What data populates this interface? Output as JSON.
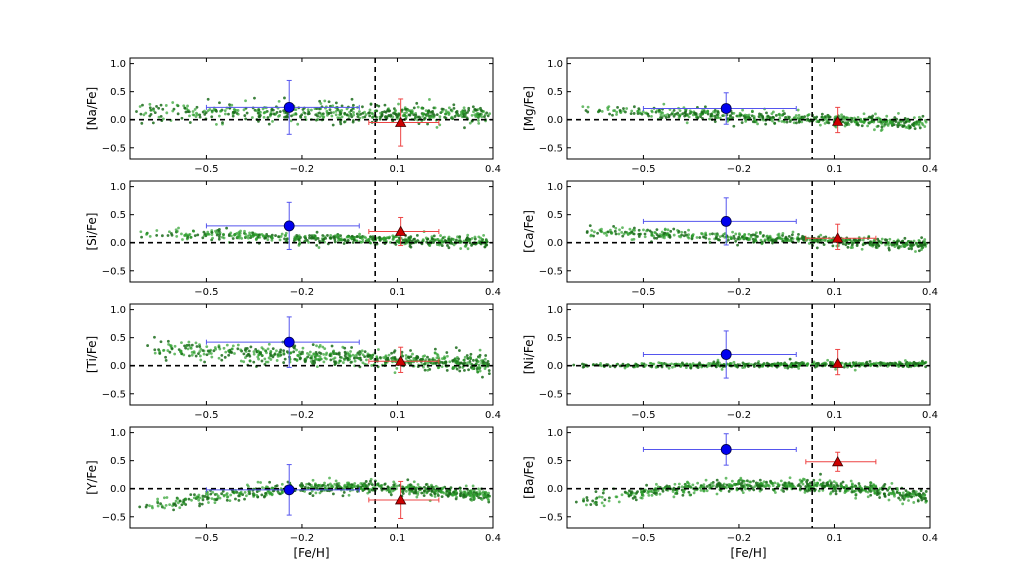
{
  "figure": {
    "type": "scatter-grid",
    "xlabel": "[Fe/H]",
    "colors": {
      "field": "#2ca02c",
      "fieldDark": "#1a6b1a",
      "blue": "#0000ee",
      "blueBar": "#5555ee",
      "red": "#cc0000",
      "redBar": "#ee4444",
      "axis": "#000000"
    }
  },
  "chart_data": [
    {
      "type": "scatter",
      "ylabel": "[Na/Fe]",
      "xlabel": "",
      "xlim": [
        -0.74,
        0.4
      ],
      "ylim": [
        -0.7,
        1.1
      ],
      "x_ticks": [
        -0.5,
        -0.2,
        0.1,
        0.4
      ],
      "x_tick_labels": [
        "−0.5",
        "−0.2",
        "0.1",
        "0.4"
      ],
      "y_ticks": [
        1.0,
        0.5,
        0.0,
        -0.5
      ],
      "y_tick_labels": [
        "1.0",
        "0.5",
        "0.0",
        "−0.5"
      ],
      "vline_x": 0.03,
      "hline_y": 0.0,
      "field": {
        "slope": -0.05,
        "intercept": 0.12,
        "scatter": 0.09,
        "n": 520,
        "x_range": [
          -0.72,
          0.39
        ]
      },
      "blue": {
        "x": -0.24,
        "y": 0.22,
        "xerr": [
          0.26,
          0.22
        ],
        "yerr": [
          0.48,
          0.48
        ]
      },
      "red": {
        "x": 0.11,
        "y": -0.05,
        "xerr": [
          0.1,
          0.12
        ],
        "yerr": [
          0.42,
          0.42
        ]
      }
    },
    {
      "type": "scatter",
      "ylabel": "[Mg/Fe]",
      "xlabel": "",
      "xlim": [
        -0.74,
        0.4
      ],
      "ylim": [
        -0.7,
        1.1
      ],
      "x_ticks": [
        -0.5,
        -0.2,
        0.1,
        0.4
      ],
      "x_tick_labels": [
        "−0.5",
        "−0.2",
        "0.1",
        "0.4"
      ],
      "y_ticks": [
        1.0,
        0.5,
        0.0,
        -0.5
      ],
      "y_tick_labels": [
        "1.0",
        "0.5",
        "0.0",
        "−0.5"
      ],
      "vline_x": 0.03,
      "hline_y": 0.0,
      "field": {
        "slope": -0.22,
        "intercept": 0.02,
        "scatter": 0.06,
        "n": 520,
        "x_range": [
          -0.72,
          0.39
        ]
      },
      "blue": {
        "x": -0.24,
        "y": 0.2,
        "xerr": [
          0.26,
          0.22
        ],
        "yerr": [
          0.28,
          0.28
        ]
      },
      "red": {
        "x": 0.11,
        "y": -0.03,
        "xerr": [
          0.0,
          0.0
        ],
        "yerr": [
          0.25,
          0.2
        ]
      }
    },
    {
      "type": "scatter",
      "ylabel": "[Si/Fe]",
      "xlabel": "",
      "xlim": [
        -0.74,
        0.4
      ],
      "ylim": [
        -0.7,
        1.1
      ],
      "x_ticks": [
        -0.5,
        -0.2,
        0.1,
        0.4
      ],
      "x_tick_labels": [
        "−0.5",
        "−0.2",
        "0.1",
        "0.4"
      ],
      "y_ticks": [
        1.0,
        0.5,
        0.0,
        -0.5
      ],
      "y_tick_labels": [
        "1.0",
        "0.5",
        "0.0",
        "−0.5"
      ],
      "vline_x": 0.03,
      "hline_y": 0.0,
      "field": {
        "slope": -0.14,
        "intercept": 0.06,
        "scatter": 0.05,
        "n": 520,
        "x_range": [
          -0.72,
          0.39
        ]
      },
      "blue": {
        "x": -0.24,
        "y": 0.3,
        "xerr": [
          0.26,
          0.22
        ],
        "yerr": [
          0.42,
          0.42
        ]
      },
      "red": {
        "x": 0.11,
        "y": 0.2,
        "xerr": [
          0.1,
          0.12
        ],
        "yerr": [
          0.25,
          0.25
        ]
      }
    },
    {
      "type": "scatter",
      "ylabel": "[Ca/Fe]",
      "xlabel": "",
      "xlim": [
        -0.74,
        0.4
      ],
      "ylim": [
        -0.7,
        1.1
      ],
      "x_ticks": [
        -0.5,
        -0.2,
        0.1,
        0.4
      ],
      "x_tick_labels": [
        "−0.5",
        "−0.2",
        "0.1",
        "0.4"
      ],
      "y_ticks": [
        1.0,
        0.5,
        0.0,
        -0.5
      ],
      "y_tick_labels": [
        "1.0",
        "0.5",
        "0.0",
        "−0.5"
      ],
      "vline_x": 0.03,
      "hline_y": 0.0,
      "field": {
        "slope": -0.22,
        "intercept": 0.05,
        "scatter": 0.05,
        "n": 520,
        "x_range": [
          -0.72,
          0.39
        ]
      },
      "blue": {
        "x": -0.24,
        "y": 0.38,
        "xerr": [
          0.26,
          0.22
        ],
        "yerr": [
          0.42,
          0.42
        ]
      },
      "red": {
        "x": 0.11,
        "y": 0.08,
        "xerr": [
          0.1,
          0.12
        ],
        "yerr": [
          0.25,
          0.2
        ]
      }
    },
    {
      "type": "scatter",
      "ylabel": "[Ti/Fe]",
      "xlabel": "",
      "xlim": [
        -0.74,
        0.4
      ],
      "ylim": [
        -0.7,
        1.1
      ],
      "x_ticks": [
        -0.5,
        -0.2,
        0.1,
        0.4
      ],
      "x_tick_labels": [
        "−0.5",
        "−0.2",
        "0.1",
        "0.4"
      ],
      "y_ticks": [
        1.0,
        0.5,
        0.0,
        -0.5
      ],
      "y_tick_labels": [
        "1.0",
        "0.5",
        "0.0",
        "−0.5"
      ],
      "vline_x": 0.03,
      "hline_y": 0.0,
      "field": {
        "slope": -0.28,
        "intercept": 0.13,
        "scatter": 0.09,
        "n": 620,
        "x_range": [
          -0.72,
          0.39
        ]
      },
      "blue": {
        "x": -0.24,
        "y": 0.42,
        "xerr": [
          0.26,
          0.22
        ],
        "yerr": [
          0.45,
          0.45
        ]
      },
      "red": {
        "x": 0.11,
        "y": 0.08,
        "xerr": [
          0.1,
          0.12
        ],
        "yerr": [
          0.25,
          0.2
        ]
      }
    },
    {
      "type": "scatter",
      "ylabel": "[Ni/Fe]",
      "xlabel": "",
      "xlim": [
        -0.74,
        0.4
      ],
      "ylim": [
        -0.7,
        1.1
      ],
      "x_ticks": [
        -0.5,
        -0.2,
        0.1,
        0.4
      ],
      "x_tick_labels": [
        "−0.5",
        "−0.2",
        "0.1",
        "0.4"
      ],
      "y_ticks": [
        1.0,
        0.5,
        0.0,
        -0.5
      ],
      "y_tick_labels": [
        "1.0",
        "0.5",
        "0.0",
        "−0.5"
      ],
      "vline_x": 0.03,
      "hline_y": 0.0,
      "field": {
        "slope": 0.03,
        "intercept": 0.02,
        "scatter": 0.025,
        "n": 520,
        "x_range": [
          -0.72,
          0.39
        ]
      },
      "blue": {
        "x": -0.24,
        "y": 0.2,
        "xerr": [
          0.26,
          0.22
        ],
        "yerr": [
          0.42,
          0.42
        ]
      },
      "red": {
        "x": 0.11,
        "y": 0.04,
        "xerr": [
          0.0,
          0.0
        ],
        "yerr": [
          0.25,
          0.2
        ]
      }
    },
    {
      "type": "scatter",
      "ylabel": "[Y/Fe]",
      "xlabel": "[Fe/H]",
      "xlim": [
        -0.74,
        0.4
      ],
      "ylim": [
        -0.7,
        1.1
      ],
      "x_ticks": [
        -0.5,
        -0.2,
        0.1,
        0.4
      ],
      "x_tick_labels": [
        "−0.5",
        "−0.2",
        "0.1",
        "0.4"
      ],
      "y_ticks": [
        1.0,
        0.5,
        0.0,
        -0.5
      ],
      "y_tick_labels": [
        "1.0",
        "0.5",
        "0.0",
        "−0.5"
      ],
      "vline_x": 0.03,
      "hline_y": 0.0,
      "field": {
        "arc": true,
        "peak_x": -0.05,
        "peak_y": 0.03,
        "curv": 0.9,
        "scatter": 0.06,
        "n": 640,
        "x_range": [
          -0.72,
          0.39
        ]
      },
      "blue": {
        "x": -0.24,
        "y": -0.02,
        "xerr": [
          0.26,
          0.22
        ],
        "yerr": [
          0.45,
          0.45
        ]
      },
      "red": {
        "x": 0.11,
        "y": -0.2,
        "xerr": [
          0.1,
          0.12
        ],
        "yerr": [
          0.33,
          0.33
        ]
      }
    },
    {
      "type": "scatter",
      "ylabel": "[Ba/Fe]",
      "xlabel": "[Fe/H]",
      "xlim": [
        -0.74,
        0.4
      ],
      "ylim": [
        -0.7,
        1.1
      ],
      "x_ticks": [
        -0.5,
        -0.2,
        0.1,
        0.4
      ],
      "x_tick_labels": [
        "−0.5",
        "−0.2",
        "0.1",
        "0.4"
      ],
      "y_ticks": [
        1.0,
        0.5,
        0.0,
        -0.5
      ],
      "y_tick_labels": [
        "1.0",
        "0.5",
        "0.0",
        "−0.5"
      ],
      "vline_x": 0.03,
      "hline_y": 0.0,
      "field": {
        "arc": true,
        "peak_x": -0.1,
        "peak_y": 0.07,
        "curv": 0.9,
        "scatter": 0.06,
        "n": 640,
        "x_range": [
          -0.72,
          0.39
        ]
      },
      "blue": {
        "x": -0.24,
        "y": 0.7,
        "xerr": [
          0.26,
          0.22
        ],
        "yerr": [
          0.28,
          0.28
        ]
      },
      "red": {
        "x": 0.11,
        "y": 0.48,
        "xerr": [
          0.1,
          0.12
        ],
        "yerr": [
          0.17,
          0.17
        ]
      }
    }
  ]
}
